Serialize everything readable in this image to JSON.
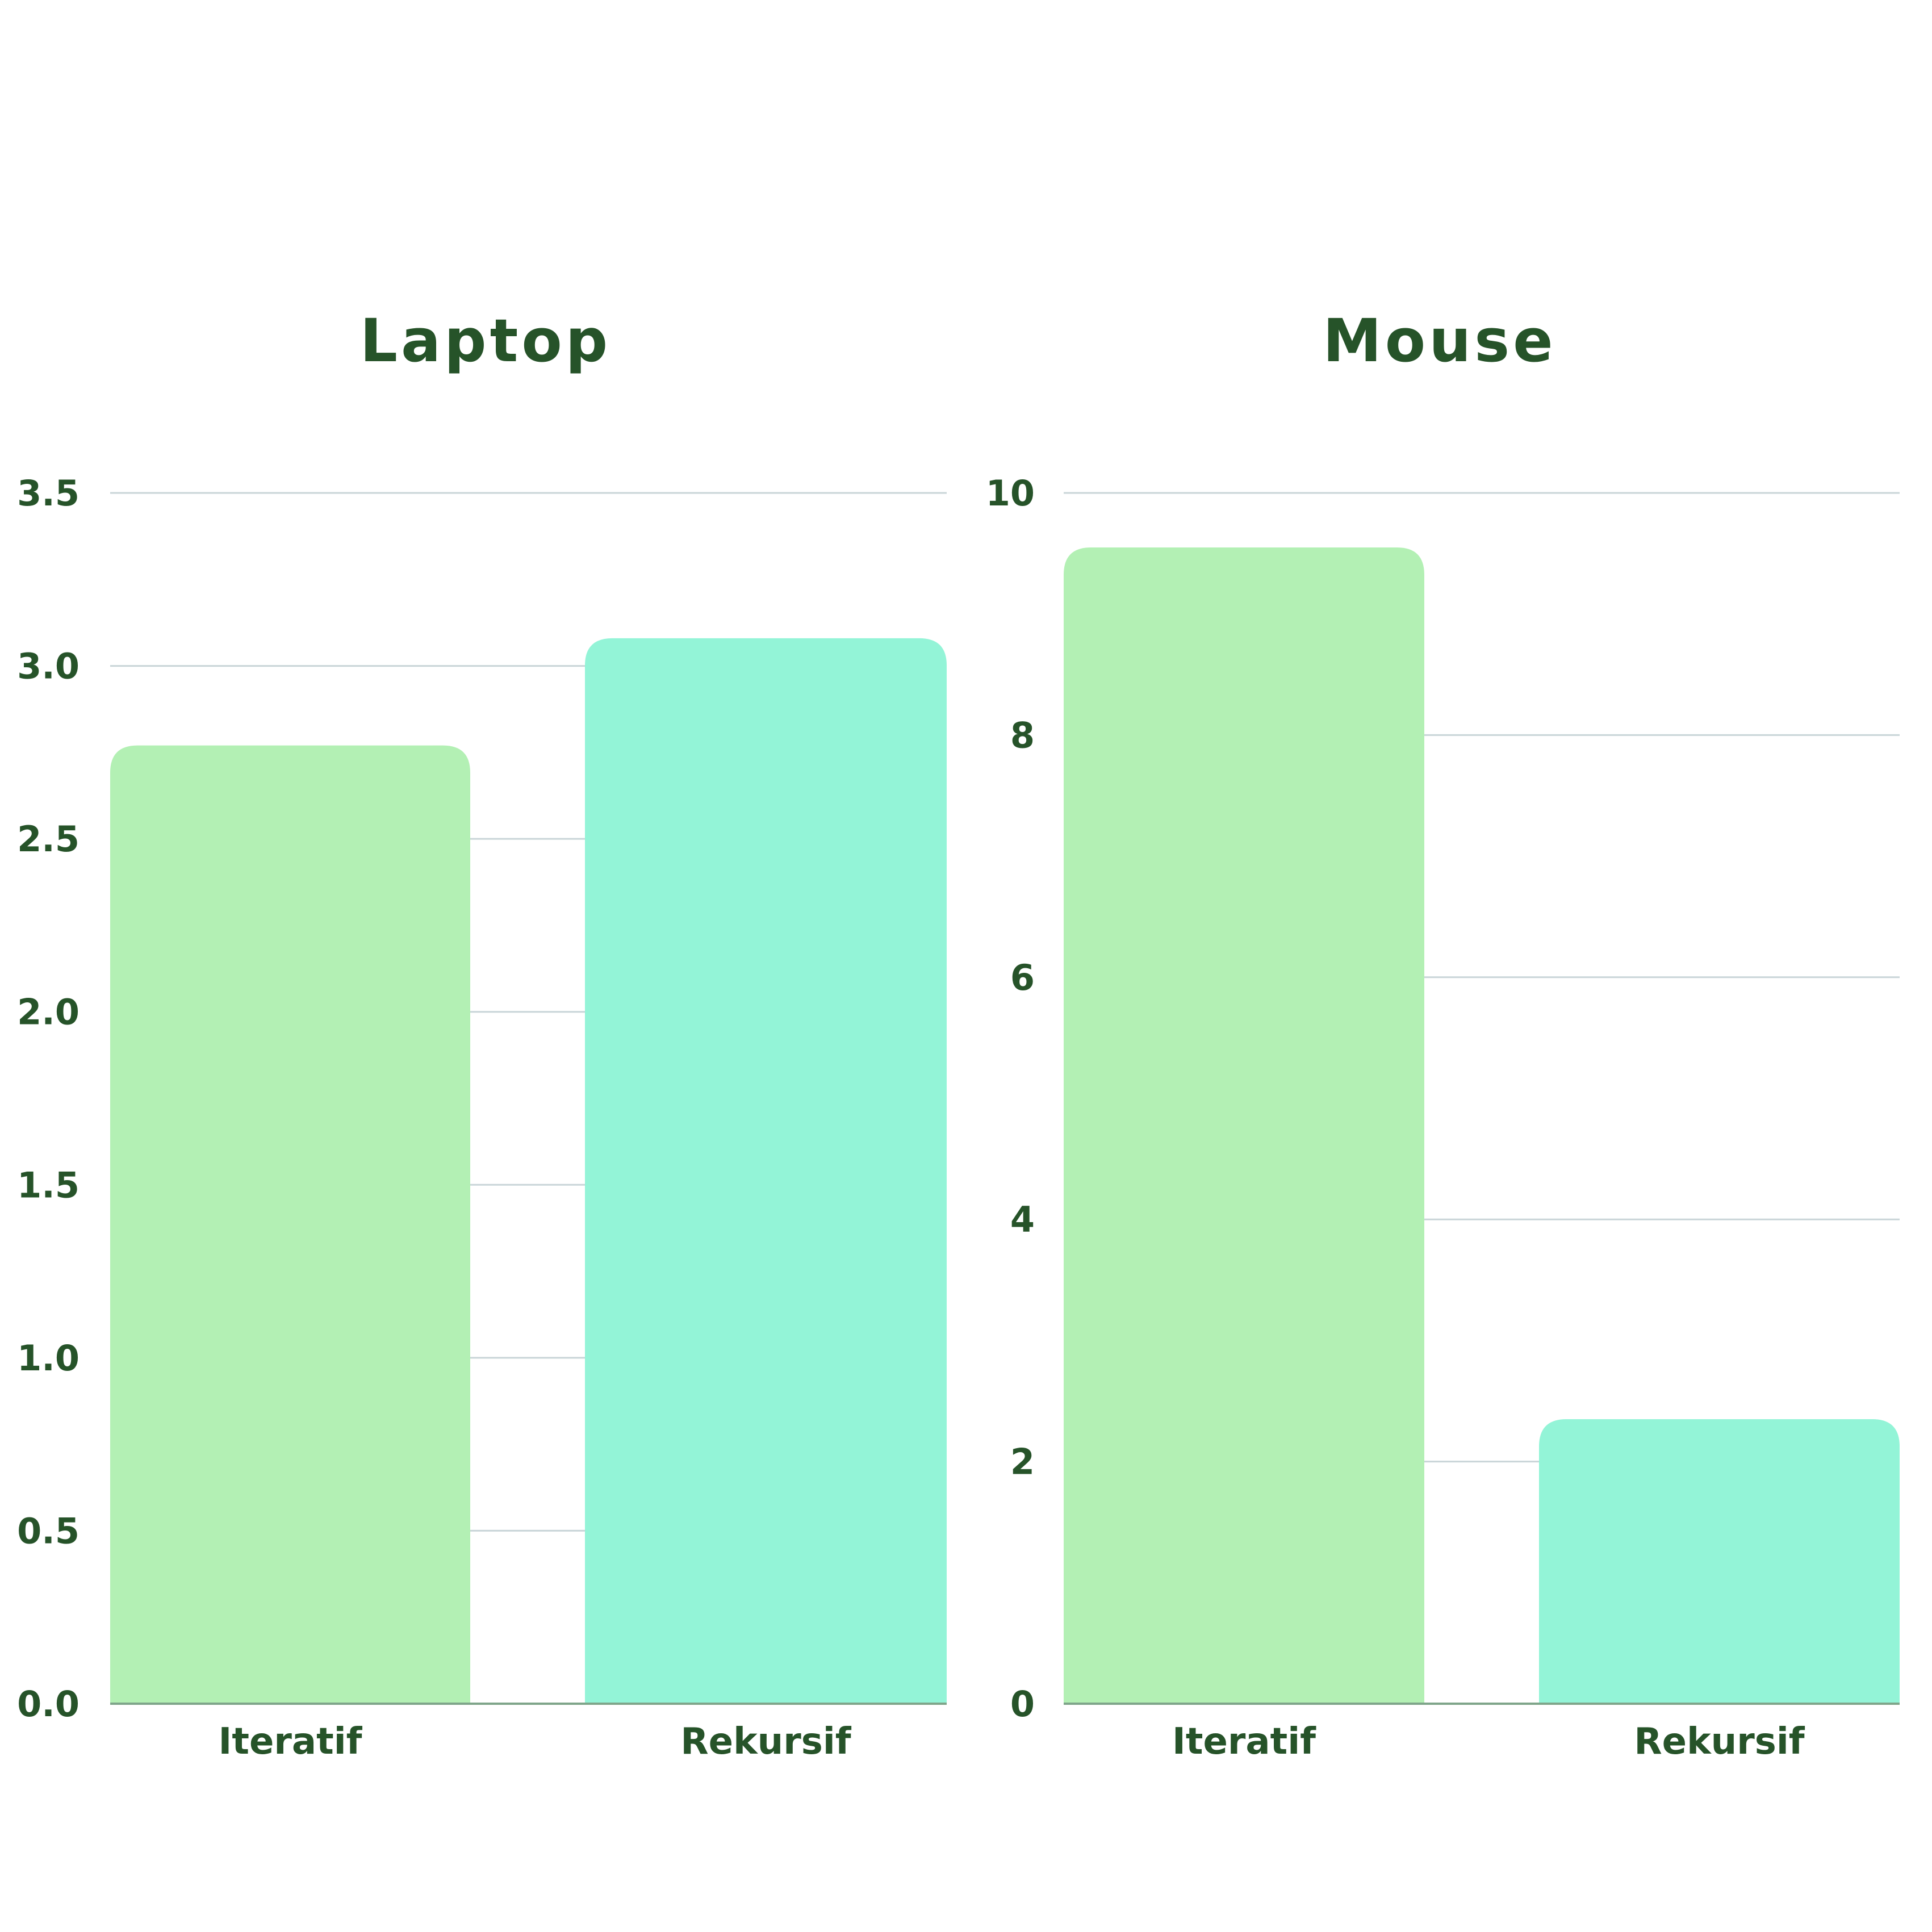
{
  "colors": {
    "text": "#265329",
    "grid": "#c9d5d8",
    "baseline": "#7fa58a",
    "background": "#ffffff",
    "iteratif": "#b3f0b4",
    "rekursif": "#93f4d7"
  },
  "chart_data": [
    {
      "type": "bar",
      "title": "Laptop",
      "xlabel": "",
      "ylabel": "",
      "categories": [
        "Iteratif",
        "Rekursif"
      ],
      "values": [
        2.77,
        3.08
      ],
      "ylim": [
        0,
        3.5
      ],
      "yticks": [
        "0.0",
        "0.5",
        "1.0",
        "1.5",
        "2.0",
        "2.5",
        "3.0",
        "3.5"
      ],
      "grid": true,
      "legend": "none"
    },
    {
      "type": "bar",
      "title": "Mouse",
      "xlabel": "",
      "ylabel": "",
      "categories": [
        "Iteratif",
        "Rekursif"
      ],
      "values": [
        9.55,
        2.35
      ],
      "ylim": [
        0,
        10
      ],
      "yticks": [
        "0",
        "2",
        "4",
        "6",
        "8",
        "10"
      ],
      "grid": true,
      "legend": "none"
    }
  ]
}
